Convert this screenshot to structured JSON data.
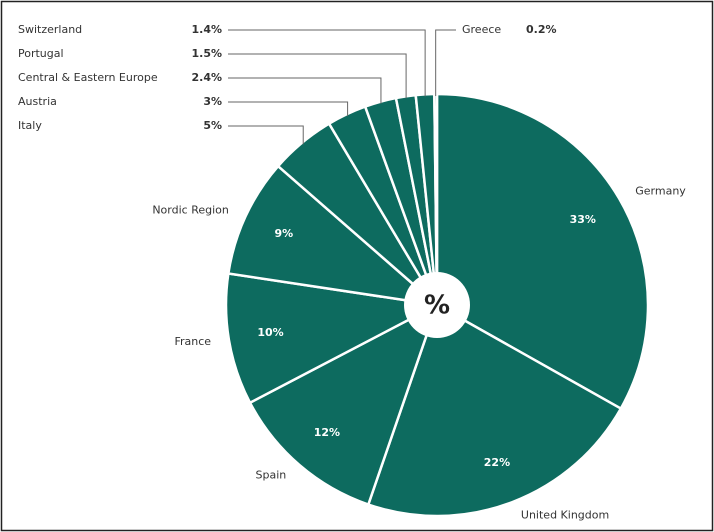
{
  "chart_data": {
    "type": "pie",
    "center_label": "%",
    "categories": [
      "Germany",
      "United Kingdom",
      "Spain",
      "France",
      "Nordic Region",
      "Italy",
      "Austria",
      "Central & Eastern Europe",
      "Portugal",
      "Switzerland",
      "Greece"
    ],
    "values": [
      33,
      22,
      12,
      10,
      9,
      5,
      3,
      2.4,
      1.5,
      1.4,
      0.2
    ],
    "value_labels": [
      "33%",
      "22%",
      "12%",
      "10%",
      "9%",
      "5%",
      "3%",
      "2.4%",
      "1.5%",
      "1.4%",
      "0.2%"
    ],
    "color": "#0d6b5f"
  }
}
